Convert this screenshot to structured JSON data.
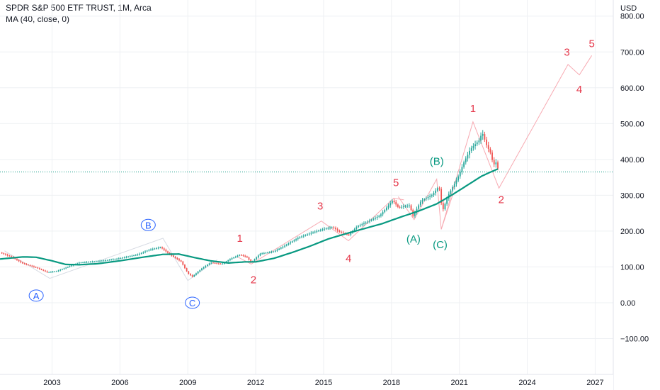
{
  "header": {
    "title": "SPDR S&P 500 ETF TRUST, 1M, Arca",
    "indicator": "MA (40, close, 0)"
  },
  "colors": {
    "candle_up": "#26a69a",
    "candle_down": "#ef5350",
    "ma_line": "#089981",
    "wave_red": "#e5374a",
    "wave_green": "#089981",
    "wave_blue": "#2962ff",
    "projection": "#f7a9b1",
    "current_price_line": "#089981"
  },
  "chart_data": {
    "type": "candlestick",
    "currency_label": "USD",
    "x_range": [
      2000.7,
      2027.8
    ],
    "y_range": [
      -200,
      845
    ],
    "y_ticks": [
      800,
      700,
      600,
      500,
      400,
      300,
      200,
      100,
      0,
      -100
    ],
    "y_tick_labels": [
      "800.00",
      "700.00",
      "600.00",
      "500.00",
      "400.00",
      "300.00",
      "200.00",
      "100.00",
      "0.00",
      "−100.00"
    ],
    "x_ticks": [
      2003,
      2006,
      2009,
      2012,
      2015,
      2018,
      2021,
      2024,
      2027
    ],
    "x_tick_labels": [
      "2003",
      "2006",
      "2009",
      "2012",
      "2015",
      "2018",
      "2021",
      "2024",
      "2027"
    ],
    "last_close": 365,
    "price_key": [
      [
        2000.7,
        140
      ],
      [
        2001.2,
        128
      ],
      [
        2001.7,
        110
      ],
      [
        2002.3,
        98
      ],
      [
        2002.8,
        85
      ],
      [
        2003.2,
        88
      ],
      [
        2003.7,
        100
      ],
      [
        2004.2,
        112
      ],
      [
        2004.8,
        115
      ],
      [
        2005.3,
        118
      ],
      [
        2005.8,
        122
      ],
      [
        2006.3,
        128
      ],
      [
        2006.8,
        135
      ],
      [
        2007.3,
        148
      ],
      [
        2007.8,
        155
      ],
      [
        2008.2,
        135
      ],
      [
        2008.7,
        115
      ],
      [
        2009.0,
        82
      ],
      [
        2009.2,
        73
      ],
      [
        2009.6,
        95
      ],
      [
        2010.0,
        112
      ],
      [
        2010.5,
        108
      ],
      [
        2010.9,
        123
      ],
      [
        2011.3,
        134
      ],
      [
        2011.6,
        128
      ],
      [
        2011.8,
        112
      ],
      [
        2012.2,
        137
      ],
      [
        2012.8,
        143
      ],
      [
        2013.3,
        160
      ],
      [
        2013.9,
        182
      ],
      [
        2014.5,
        196
      ],
      [
        2015.0,
        206
      ],
      [
        2015.4,
        211
      ],
      [
        2015.7,
        198
      ],
      [
        2016.1,
        189
      ],
      [
        2016.5,
        214
      ],
      [
        2016.9,
        225
      ],
      [
        2017.5,
        244
      ],
      [
        2018.05,
        286
      ],
      [
        2018.3,
        266
      ],
      [
        2018.8,
        272
      ],
      [
        2018.95,
        242
      ],
      [
        2019.3,
        284
      ],
      [
        2019.8,
        301
      ],
      [
        2020.1,
        325
      ],
      [
        2020.25,
        255
      ],
      [
        2020.5,
        300
      ],
      [
        2020.9,
        345
      ],
      [
        2021.2,
        392
      ],
      [
        2021.5,
        430
      ],
      [
        2021.9,
        455
      ],
      [
        2022.0,
        477
      ],
      [
        2022.2,
        440
      ],
      [
        2022.4,
        415
      ],
      [
        2022.5,
        382
      ],
      [
        2022.6,
        395
      ],
      [
        2022.7,
        375
      ],
      [
        2022.75,
        365
      ]
    ],
    "ma_key": [
      [
        2000.7,
        122
      ],
      [
        2001.2,
        125
      ],
      [
        2001.7,
        128
      ],
      [
        2002.3,
        127
      ],
      [
        2003.0,
        117
      ],
      [
        2003.6,
        107
      ],
      [
        2004.2,
        106
      ],
      [
        2005.0,
        109
      ],
      [
        2006.0,
        117
      ],
      [
        2007.0,
        127
      ],
      [
        2007.9,
        135
      ],
      [
        2008.6,
        136
      ],
      [
        2009.3,
        126
      ],
      [
        2010.0,
        117
      ],
      [
        2010.8,
        111
      ],
      [
        2011.5,
        114
      ],
      [
        2012.0,
        114
      ],
      [
        2012.8,
        124
      ],
      [
        2013.6,
        140
      ],
      [
        2014.4,
        158
      ],
      [
        2015.2,
        178
      ],
      [
        2016.0,
        193
      ],
      [
        2016.8,
        207
      ],
      [
        2017.6,
        221
      ],
      [
        2018.4,
        239
      ],
      [
        2019.2,
        256
      ],
      [
        2020.0,
        276
      ],
      [
        2020.7,
        302
      ],
      [
        2021.4,
        330
      ],
      [
        2022.0,
        354
      ],
      [
        2022.75,
        375
      ]
    ],
    "waves": {
      "red_impulse": [
        [
          2011.2,
          128
        ],
        [
          2011.8,
          108
        ],
        [
          2014.9,
          228
        ],
        [
          2016.1,
          173
        ],
        [
          2018.1,
          292
        ],
        [
          2018.55,
          287
        ]
      ],
      "green_corrective": [
        [
          2018.3,
          296
        ],
        [
          2019.0,
          232
        ],
        [
          2020.0,
          345
        ],
        [
          2020.2,
          205
        ],
        [
          2020.7,
          300
        ]
      ],
      "projection": [
        [
          2020.2,
          205
        ],
        [
          2021.6,
          505
        ],
        [
          2022.75,
          320
        ],
        [
          2025.8,
          665
        ],
        [
          2026.3,
          636
        ],
        [
          2026.85,
          690
        ]
      ],
      "abc_shadow": [
        [
          2000.9,
          145
        ],
        [
          2002.9,
          68
        ],
        [
          2007.9,
          180
        ],
        [
          2009.0,
          62
        ],
        [
          2010.3,
          120
        ]
      ]
    },
    "annotations": [
      {
        "text": "1",
        "x": 2011.3,
        "y": 180,
        "color": "red"
      },
      {
        "text": "2",
        "x": 2011.9,
        "y": 64,
        "color": "red"
      },
      {
        "text": "3",
        "x": 2014.85,
        "y": 270,
        "color": "red"
      },
      {
        "text": "4",
        "x": 2016.1,
        "y": 124,
        "color": "red"
      },
      {
        "text": "5",
        "x": 2018.2,
        "y": 335,
        "color": "red"
      },
      {
        "text": "(A)",
        "x": 2018.97,
        "y": 178,
        "color": "green"
      },
      {
        "text": "(B)",
        "x": 2020.0,
        "y": 395,
        "color": "green"
      },
      {
        "text": "(C)",
        "x": 2020.15,
        "y": 162,
        "color": "green"
      },
      {
        "text": "1",
        "x": 2021.6,
        "y": 542,
        "color": "red"
      },
      {
        "text": "2",
        "x": 2022.85,
        "y": 288,
        "color": "red"
      },
      {
        "text": "3",
        "x": 2025.75,
        "y": 700,
        "color": "red"
      },
      {
        "text": "4",
        "x": 2026.3,
        "y": 596,
        "color": "red"
      },
      {
        "text": "5",
        "x": 2026.85,
        "y": 723,
        "color": "red"
      },
      {
        "text": "A",
        "x": 2002.3,
        "y": 20,
        "color": "blue",
        "circled": true
      },
      {
        "text": "B",
        "x": 2007.25,
        "y": 217,
        "color": "blue",
        "circled": true
      },
      {
        "text": "C",
        "x": 2009.2,
        "y": 0,
        "color": "blue",
        "circled": true
      }
    ]
  }
}
